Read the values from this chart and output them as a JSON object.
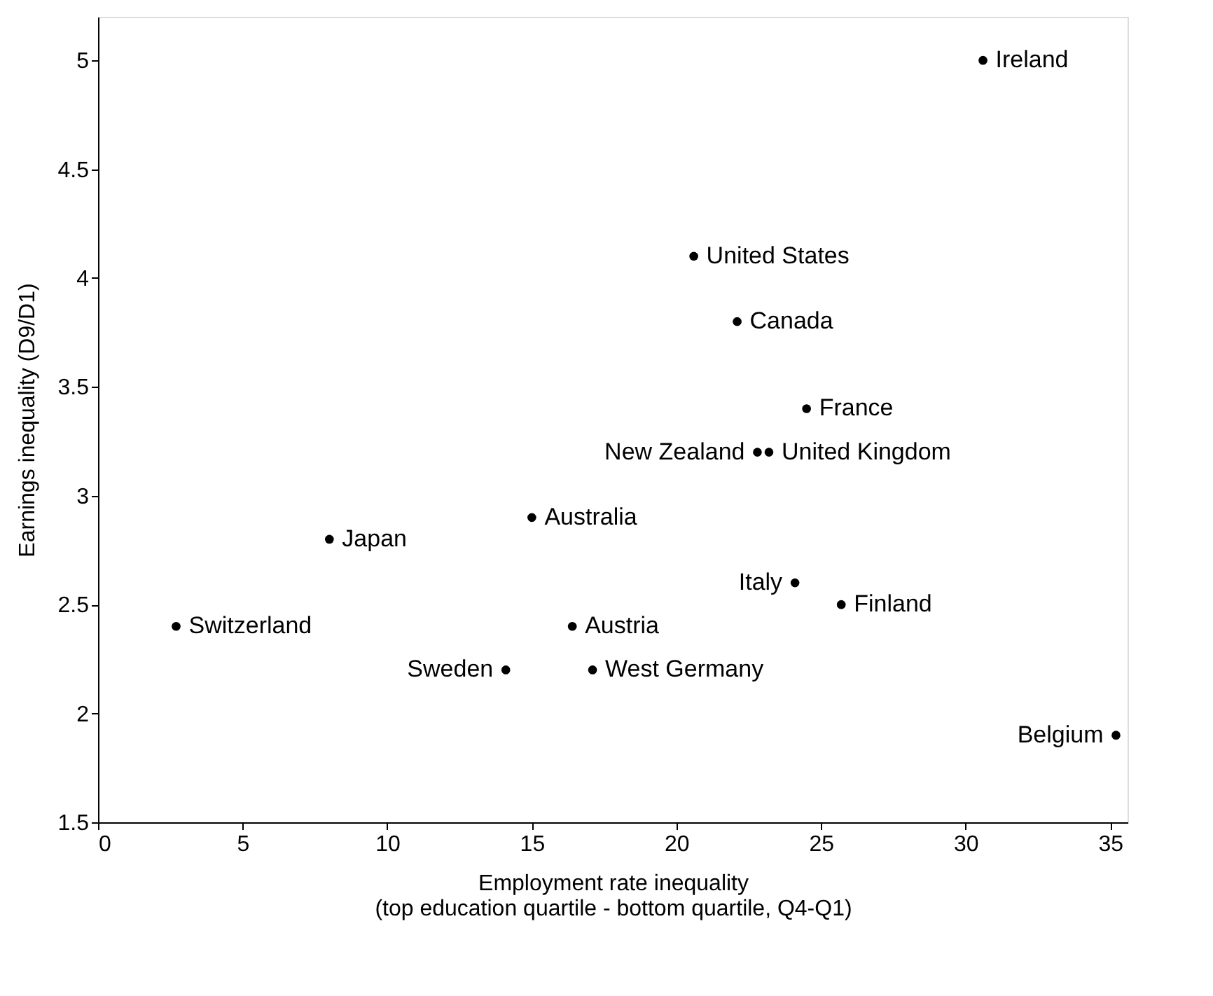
{
  "chart_data": {
    "type": "scatter",
    "xlabel": "Employment rate inequality\n(top education quartile - bottom quartile, Q4-Q1)",
    "ylabel": "Earnings inequality (D9/D1)",
    "x": [
      30.6,
      20.6,
      22.1,
      24.5,
      22.8,
      23.2,
      15.0,
      8.0,
      24.1,
      25.7,
      2.7,
      16.4,
      14.1,
      17.1,
      35.2
    ],
    "values": [
      5.0,
      4.1,
      3.8,
      3.4,
      3.2,
      3.2,
      2.9,
      2.8,
      2.6,
      2.5,
      2.4,
      2.4,
      2.2,
      2.2,
      1.9
    ],
    "color": "#000000",
    "marker": "circle",
    "annotations": [
      {
        "text": "Ireland",
        "x": 30.6,
        "y": 5.0
      },
      {
        "text": "United States",
        "x": 20.6,
        "y": 4.1
      },
      {
        "text": "Canada",
        "x": 22.1,
        "y": 3.8
      },
      {
        "text": "France",
        "x": 24.5,
        "y": 3.4
      },
      {
        "text": "New Zealand",
        "x": 22.8,
        "y": 3.2
      },
      {
        "text": "United Kingdom",
        "x": 23.2,
        "y": 3.2
      },
      {
        "text": "Australia",
        "x": 15.0,
        "y": 2.9
      },
      {
        "text": "Japan",
        "x": 8.0,
        "y": 2.8
      },
      {
        "text": "Italy",
        "x": 24.1,
        "y": 2.6
      },
      {
        "text": "Finland",
        "x": 25.7,
        "y": 2.5
      },
      {
        "text": "Switzerland",
        "x": 2.7,
        "y": 2.4
      },
      {
        "text": "Austria",
        "x": 16.4,
        "y": 2.4
      },
      {
        "text": "Sweden",
        "x": 14.1,
        "y": 2.2
      },
      {
        "text": "West Germany",
        "x": 17.1,
        "y": 2.2
      },
      {
        "text": "Belgium",
        "x": 35.2,
        "y": 1.9
      }
    ],
    "xlim": [
      0,
      35.6
    ],
    "xticks": [
      0,
      5,
      10,
      15,
      20,
      25,
      30,
      35
    ],
    "ylim": [
      1.5,
      5.2
    ],
    "yticks": [
      1.5,
      2,
      2.5,
      3,
      3.5,
      4,
      4.5,
      5
    ],
    "grid": false
  }
}
